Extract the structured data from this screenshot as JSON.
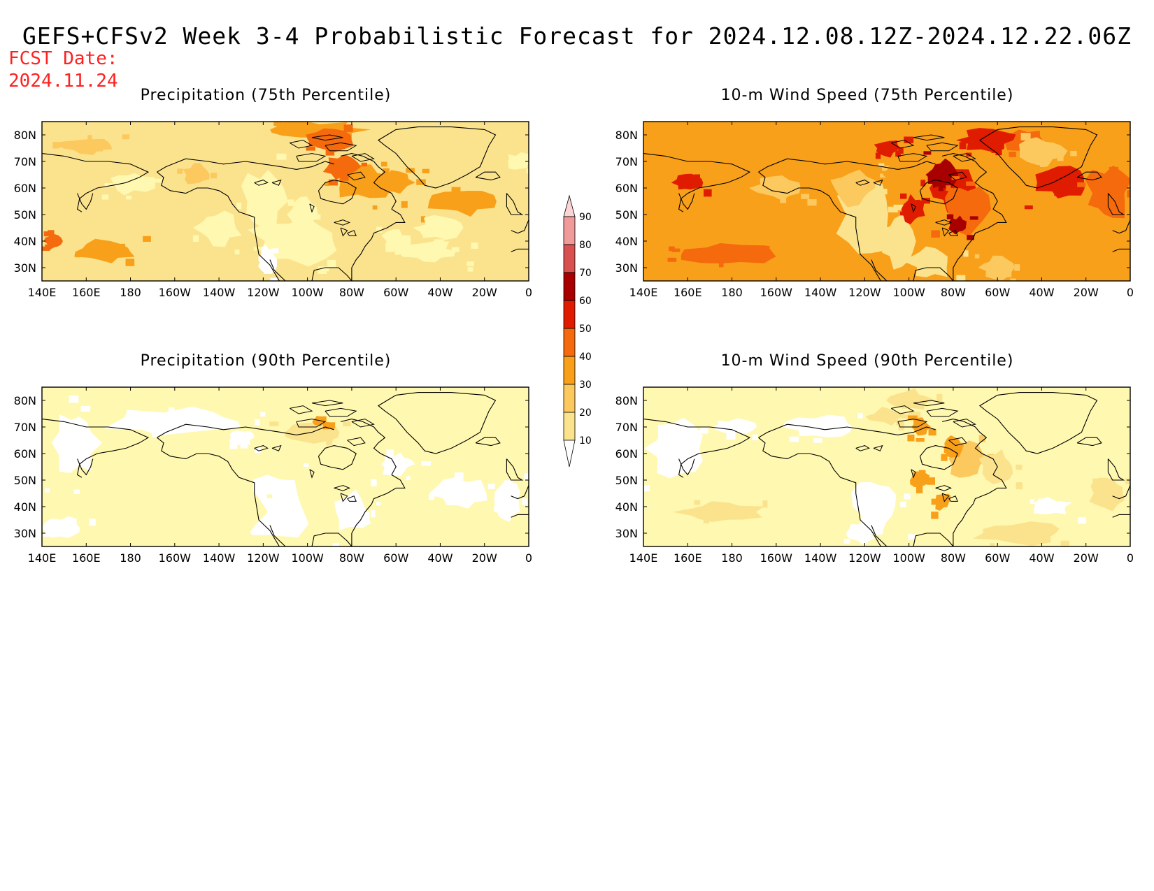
{
  "title": "GEFS+CFSv2 Week 3-4 Probabilistic Forecast for 2024.12.08.12Z-2024.12.22.06Z",
  "fcst_label": "FCST Date:",
  "fcst_date": "2024.11.24",
  "lon_ticks": [
    "140E",
    "160E",
    "180",
    "160W",
    "140W",
    "120W",
    "100W",
    "80W",
    "60W",
    "40W",
    "20W",
    "0"
  ],
  "lat_ticks": [
    "80N",
    "70N",
    "60N",
    "50N",
    "40N",
    "30N"
  ],
  "panels": [
    {
      "title": "Precipitation (75th Percentile)",
      "intensity": "moderate"
    },
    {
      "title": "10-m Wind Speed (75th Percentile)",
      "intensity": "high"
    },
    {
      "title": "Precipitation (90th Percentile)",
      "intensity": "low"
    },
    {
      "title": "10-m Wind Speed (90th Percentile)",
      "intensity": "low-moderate"
    }
  ],
  "colorbar": {
    "levels": [
      "10",
      "20",
      "30",
      "40",
      "50",
      "60",
      "70",
      "80",
      "90"
    ],
    "colors": [
      "#fff8b0",
      "#fbe38e",
      "#fcc95f",
      "#f9a01a",
      "#f46a0c",
      "#e01c00",
      "#a80000",
      "#d85050",
      "#f09a9a",
      "#fbd5d5"
    ]
  }
}
